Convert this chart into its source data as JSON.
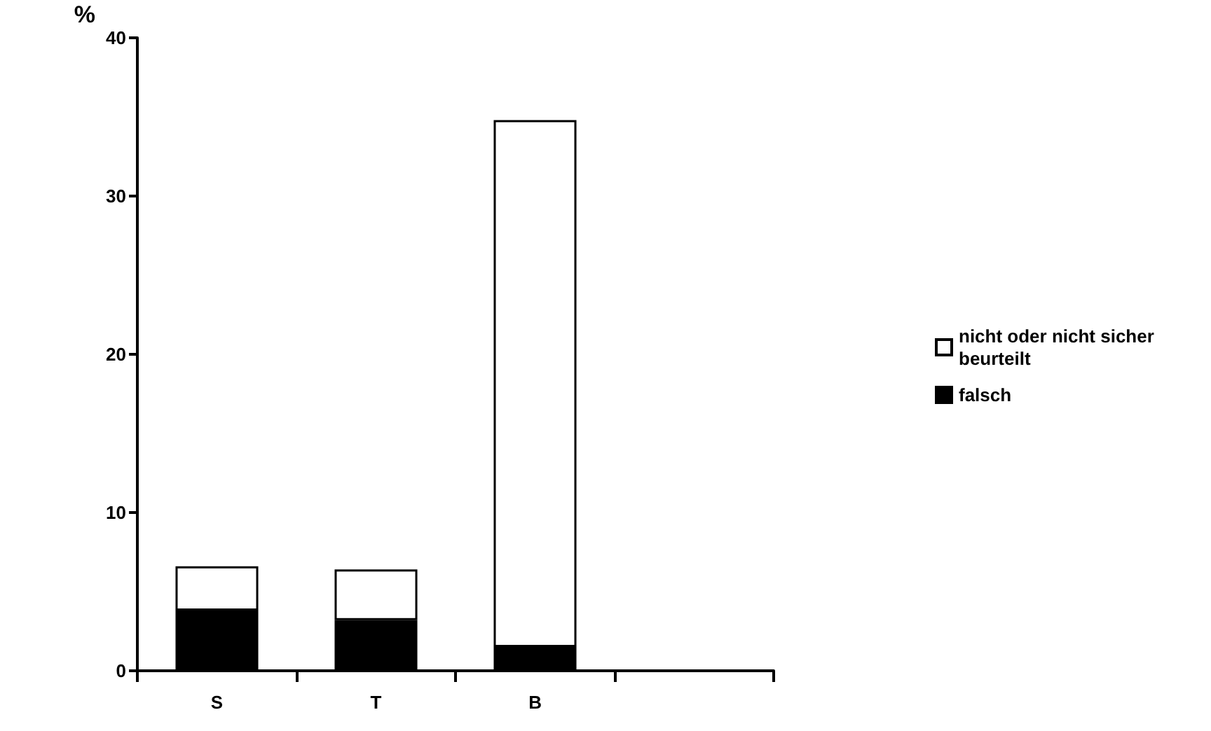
{
  "chart_data": {
    "type": "bar",
    "stacked": true,
    "ylabel": "%",
    "categories": [
      "S",
      "T",
      "B",
      null
    ],
    "series": [
      {
        "name": "falsch",
        "color": "#000000",
        "values": [
          3.8,
          3.2,
          1.5,
          null
        ]
      },
      {
        "name": "nicht oder nicht sicher beurteilt",
        "color": "#ffffff",
        "values": [
          2.8,
          3.2,
          33.3,
          null
        ]
      }
    ],
    "ylim": [
      0,
      40
    ],
    "yticks": [
      0,
      10,
      20,
      30,
      40
    ],
    "grid": false,
    "legend": "right"
  }
}
